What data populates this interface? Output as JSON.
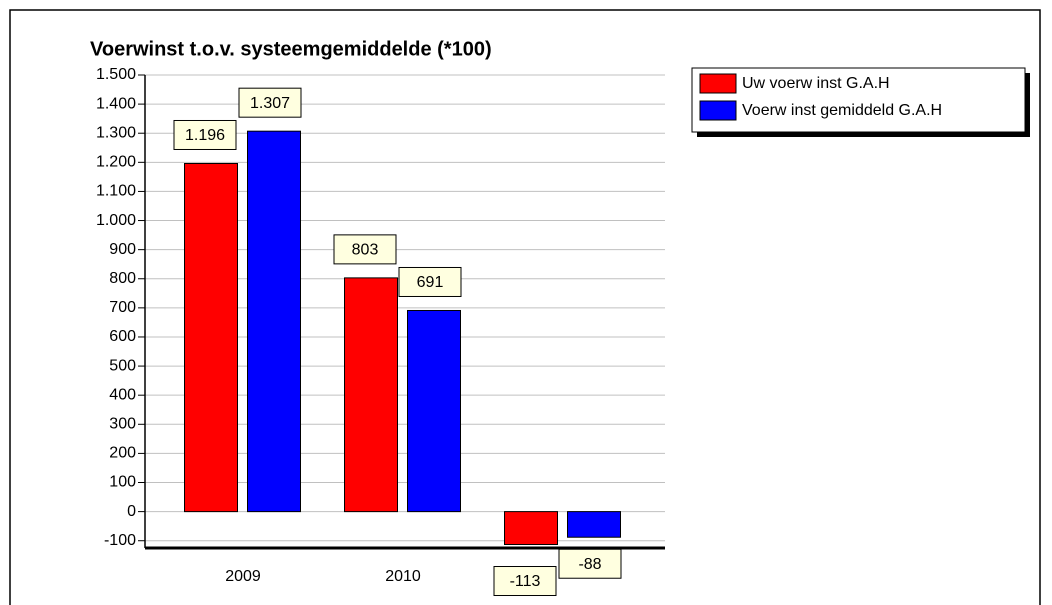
{
  "chart_data": {
    "type": "bar",
    "title": "Voerwinst t.o.v. systeemgemiddelde (*100)",
    "categories": [
      "2009",
      "2010",
      null
    ],
    "series": [
      {
        "name": "Uw voerw inst G.A.H",
        "color": "#ff0000",
        "values": [
          1196,
          803,
          -113
        ],
        "value_labels": [
          "1.196",
          "803",
          "-113"
        ]
      },
      {
        "name": "Voerw inst gemiddeld G.A.H",
        "color": "#0000ff",
        "values": [
          1307,
          691,
          -88
        ],
        "value_labels": [
          "1.307",
          "691",
          "-88"
        ]
      }
    ],
    "ylim": [
      -125,
      1500
    ],
    "yticks": [
      -100,
      0,
      100,
      200,
      300,
      400,
      500,
      600,
      700,
      800,
      900,
      {
        "value": 1000,
        "label": "1.000"
      },
      {
        "value": 1100,
        "label": "1.100"
      },
      {
        "value": 1200,
        "label": "1.200"
      },
      {
        "value": 1300,
        "label": "1.300"
      },
      {
        "value": 1400,
        "label": "1.400"
      },
      {
        "value": 1500,
        "label": "1.500"
      }
    ],
    "grid": true,
    "legend": "right"
  }
}
